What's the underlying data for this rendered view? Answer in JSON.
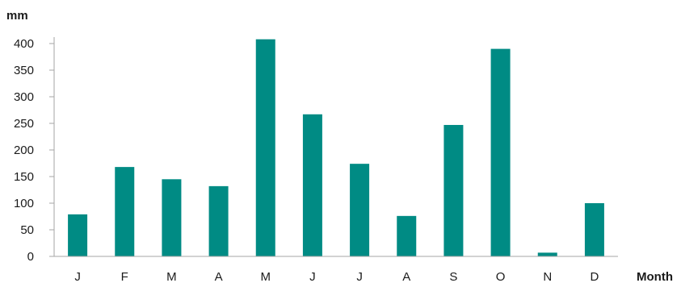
{
  "chart_data": {
    "type": "bar",
    "ylabel": "mm",
    "xlabel": "Month",
    "categories": [
      "J",
      "F",
      "M",
      "A",
      "M",
      "J",
      "J",
      "A",
      "S",
      "O",
      "N",
      "D"
    ],
    "values": [
      79,
      168,
      145,
      132,
      408,
      267,
      174,
      76,
      247,
      390,
      7,
      100
    ],
    "ylim": [
      0,
      400
    ],
    "yticks": [
      0,
      50,
      100,
      150,
      200,
      250,
      300,
      350,
      400
    ],
    "bar_color": "#008b84",
    "axis_color": "#a6a6a6",
    "grid": false,
    "legend": "none"
  }
}
